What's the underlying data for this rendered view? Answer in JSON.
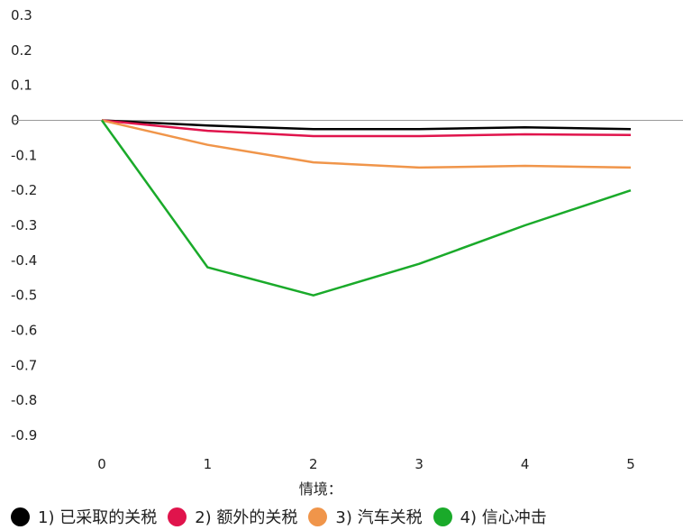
{
  "chart_data": {
    "type": "line",
    "x": [
      0,
      1,
      2,
      3,
      4,
      5
    ],
    "xlabel": "情境：",
    "ylabel": "",
    "ylim": [
      -0.9,
      0.3
    ],
    "yticks": [
      "0.3",
      "0.2",
      "0.1",
      "0",
      "-0.1",
      "-0.2",
      "-0.3",
      "-0.4",
      "-0.5",
      "-0.6",
      "-0.7",
      "-0.8",
      "-0.9"
    ],
    "ytick_values": [
      0.3,
      0.2,
      0.1,
      0,
      -0.1,
      -0.2,
      -0.3,
      -0.4,
      -0.5,
      -0.6,
      -0.7,
      -0.8,
      -0.9
    ],
    "xticks": [
      "0",
      "1",
      "2",
      "3",
      "4",
      "5"
    ],
    "grid": false,
    "legend_position": "bottom",
    "series": [
      {
        "name": "1) 已采取的关税",
        "color": "#000000",
        "values": [
          0,
          -0.015,
          -0.025,
          -0.025,
          -0.02,
          -0.025
        ]
      },
      {
        "name": "2) 额外的关税",
        "color": "#e0144c",
        "values": [
          0,
          -0.03,
          -0.045,
          -0.045,
          -0.04,
          -0.042
        ]
      },
      {
        "name": "3) 汽车关税",
        "color": "#f0954a",
        "values": [
          0,
          -0.07,
          -0.12,
          -0.135,
          -0.13,
          -0.135
        ]
      },
      {
        "name": "4) 信心冲击",
        "color": "#1aaa2a",
        "values": [
          0,
          -0.42,
          -0.5,
          -0.41,
          -0.3,
          -0.2
        ]
      }
    ]
  }
}
